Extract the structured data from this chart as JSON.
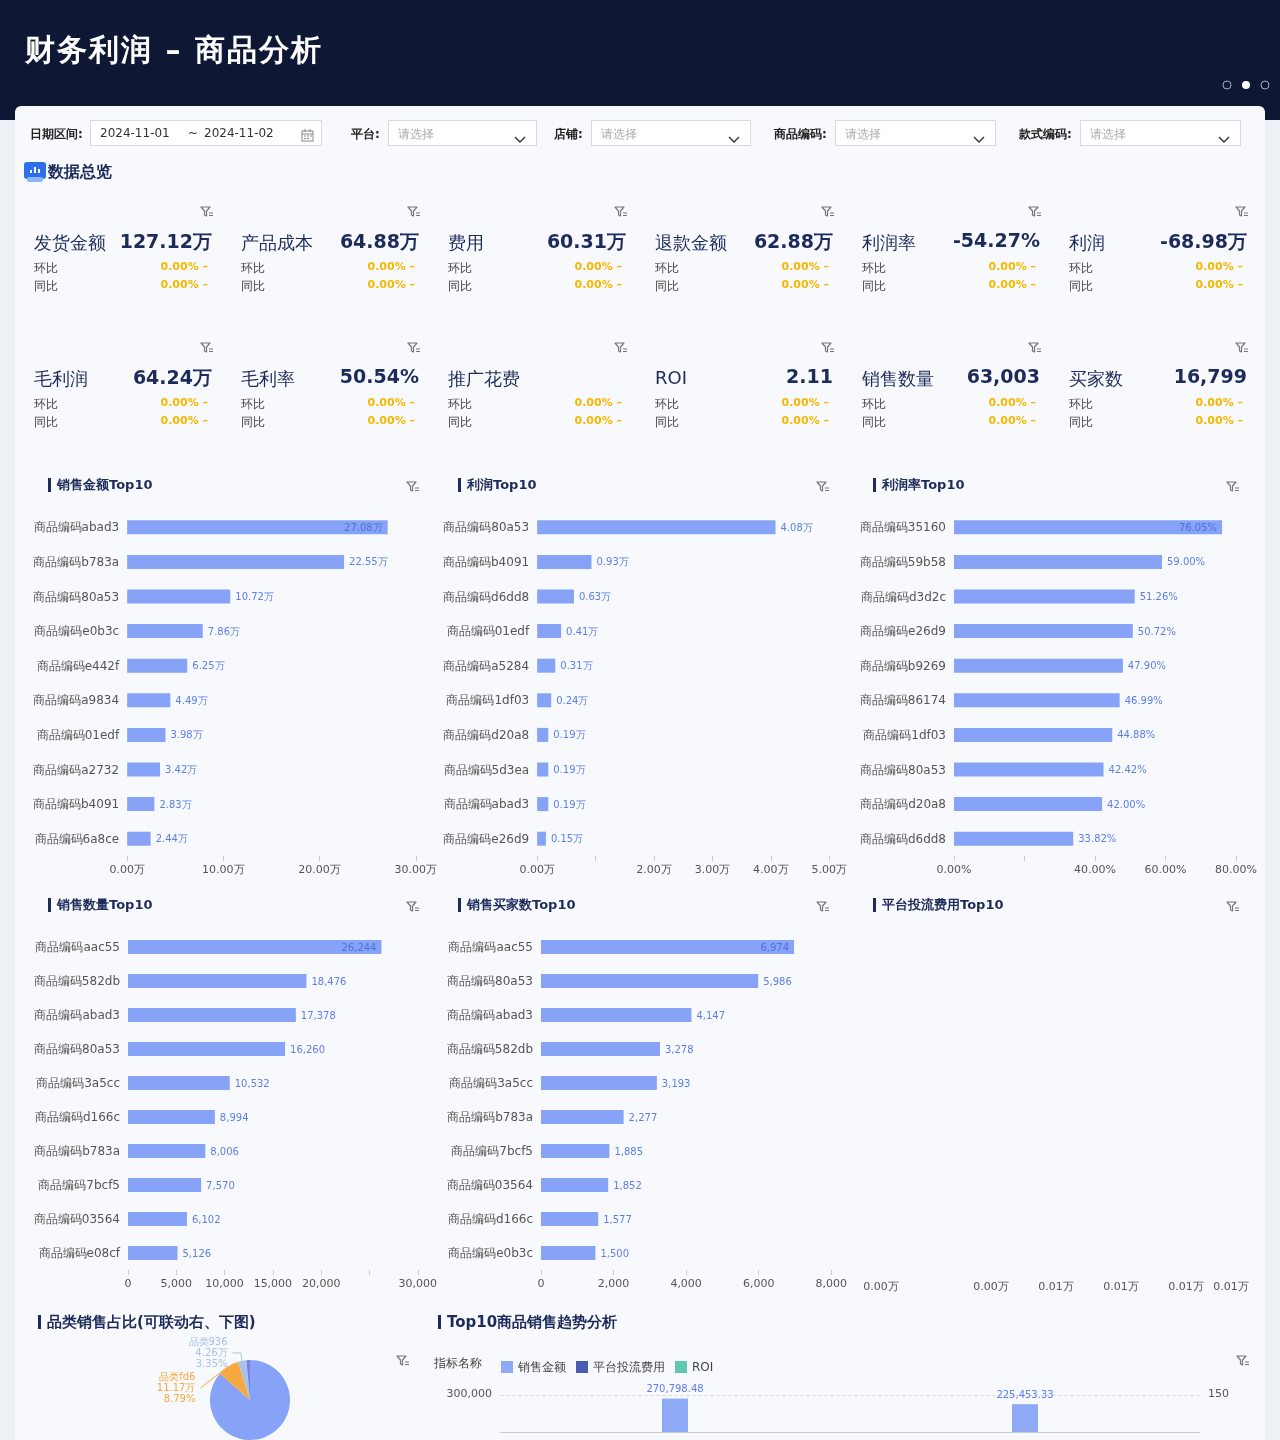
{
  "chart_data": [
    {
      "type": "other",
      "title": "财务利润 – 商品分析",
      "annotations": [
        "日期区间:",
        "2024-11-01",
        "~",
        "2024-11-02",
        "平台:",
        "请选择",
        "店铺:",
        "请选择",
        "商品编码:",
        "请选择",
        "款式编码:",
        "请选择"
      ]
    },
    {
      "type": "other",
      "title": "数据总览",
      "annotations": [
        "发货金额",
        "127.12万",
        "环比",
        "0.00% –",
        "同比",
        "0.00% –",
        "产品成本",
        "64.88万",
        "环比",
        "0.00% –",
        "同比",
        "0.00% –",
        "费用",
        "60.31万",
        "环比",
        "0.00% –",
        "同比",
        "0.00% –",
        "退款金额",
        "62.88万",
        "环比",
        "0.00% –",
        "同比",
        "0.00% –",
        "利润率",
        "-54.27%",
        "环比",
        "0.00% –",
        "同比",
        "0.00% –",
        "利润",
        "-68.98万",
        "环比",
        "0.00% –",
        "同比",
        "0.00% –",
        "毛利润",
        "64.24万",
        "环比",
        "0.00% –",
        "同比",
        "0.00% –",
        "毛利率",
        "50.54%",
        "环比",
        "0.00% –",
        "同比",
        "0.00% –",
        "推广花费",
        "环比",
        "0.00% –",
        "同比",
        "0.00% –",
        "ROI",
        "2.11",
        "环比",
        "0.00% –",
        "同比",
        "0.00% –",
        "销售数量",
        "63,003",
        "环比",
        "0.00% –",
        "同比",
        "0.00% –",
        "买家数",
        "16,799",
        "环比",
        "0.00% –",
        "同比",
        "0.00% –"
      ]
    },
    {
      "type": "bar",
      "orientation": "horizontal",
      "title": "销售金额Top10",
      "categories": [
        "商品编码abad3",
        "商品编码b783a",
        "商品编码80a53",
        "商品编码e0b3c",
        "商品编码e442f",
        "商品编码a9834",
        "商品编码01edf",
        "商品编码a2732",
        "商品编码b4091",
        "商品编码6a8ce"
      ],
      "color": "#86a3f7",
      "values": [
        27.08,
        22.55,
        10.72,
        7.86,
        6.25,
        4.49,
        3.98,
        3.42,
        2.83,
        2.44
      ],
      "value_labels": [
        "27.08万",
        "22.55万",
        "10.72万",
        "7.86万",
        "6.25万",
        "4.49万",
        "3.98万",
        "3.42万",
        "2.83万",
        "2.44万"
      ],
      "xlim": [
        0,
        30
      ],
      "xticks": [
        {
          "value": 0,
          "label": "0.00万"
        },
        {
          "value": 10,
          "label": "10.00万"
        },
        {
          "value": 20,
          "label": "20.00万"
        },
        {
          "value": 30,
          "label": "30.00万"
        }
      ]
    },
    {
      "type": "bar",
      "orientation": "horizontal",
      "title": "利润Top10",
      "categories": [
        "商品编码80a53",
        "商品编码b4091",
        "商品编码d6dd8",
        "商品编码01edf",
        "商品编码a5284",
        "商品编码1df03",
        "商品编码d20a8",
        "商品编码5d3ea",
        "商品编码abad3",
        "商品编码e26d9"
      ],
      "color": "#86a3f7",
      "values": [
        4.08,
        0.93,
        0.63,
        0.41,
        0.31,
        0.24,
        0.19,
        0.19,
        0.19,
        0.15
      ],
      "value_labels": [
        "4.08万",
        "0.93万",
        "0.63万",
        "0.41万",
        "0.31万",
        "0.24万",
        "0.19万",
        "0.19万",
        "0.19万",
        "0.15万"
      ],
      "xlim": [
        0,
        5
      ],
      "xticks": [
        {
          "value": 0,
          "label": "0.00万"
        },
        {
          "value": 1,
          "label": null
        },
        {
          "value": 2,
          "label": "2.00万"
        },
        {
          "value": 3,
          "label": "3.00万"
        },
        {
          "value": 4,
          "label": "4.00万"
        },
        {
          "value": 5,
          "label": "5.00万"
        }
      ]
    },
    {
      "type": "bar",
      "orientation": "horizontal",
      "title": "利润率Top10",
      "categories": [
        "商品编码35160",
        "商品编码59b58",
        "商品编码d3d2c",
        "商品编码e26d9",
        "商品编码b9269",
        "商品编码86174",
        "商品编码1df03",
        "商品编码80a53",
        "商品编码d20a8",
        "商品编码d6dd8"
      ],
      "color": "#86a3f7",
      "values": [
        76.05,
        59.0,
        51.26,
        50.72,
        47.9,
        46.99,
        44.88,
        42.42,
        42.0,
        33.82
      ],
      "value_labels": [
        "76.05%",
        "59.00%",
        "51.26%",
        "50.72%",
        "47.90%",
        "46.99%",
        "44.88%",
        "42.42%",
        "42.00%",
        "33.82%"
      ],
      "xlim": [
        0,
        80
      ],
      "xticks": [
        {
          "value": 0,
          "label": "0.00%"
        },
        {
          "value": 20,
          "label": null
        },
        {
          "value": 40,
          "label": "40.00%"
        },
        {
          "value": 60,
          "label": "60.00%"
        },
        {
          "value": 80,
          "label": "80.00%"
        }
      ]
    },
    {
      "type": "bar",
      "orientation": "horizontal",
      "title": "销售数量Top10",
      "categories": [
        "商品编码aac55",
        "商品编码582db",
        "商品编码abad3",
        "商品编码80a53",
        "商品编码3a5cc",
        "商品编码d166c",
        "商品编码b783a",
        "商品编码7bcf5",
        "商品编码03564",
        "商品编码e08cf"
      ],
      "color": "#86a3f7",
      "values": [
        26244,
        18476,
        17378,
        16260,
        10532,
        8994,
        8006,
        7570,
        6102,
        5126
      ],
      "value_labels": [
        "26,244",
        "18,476",
        "17,378",
        "16,260",
        "10,532",
        "8,994",
        "8,006",
        "7,570",
        "6,102",
        "5,126"
      ],
      "xlim": [
        0,
        30000
      ],
      "xticks": [
        0,
        {
          "value": 5000,
          "label": "5,000"
        },
        {
          "value": 10000,
          "label": "10,000"
        },
        {
          "value": 15000,
          "label": "15,000"
        },
        {
          "value": 20000,
          "label": "20,000"
        },
        {
          "value": 25000,
          "label": null
        },
        {
          "value": 30000,
          "label": "30,000"
        }
      ]
    },
    {
      "type": "bar",
      "orientation": "horizontal",
      "title": "销售买家数Top10",
      "categories": [
        "商品编码aac55",
        "商品编码80a53",
        "商品编码abad3",
        "商品编码582db",
        "商品编码3a5cc",
        "商品编码b783a",
        "商品编码7bcf5",
        "商品编码03564",
        "商品编码d166c",
        "商品编码e0b3c"
      ],
      "color": "#86a3f7",
      "values": [
        6974,
        5986,
        4147,
        3278,
        3193,
        2277,
        1885,
        1852,
        1577,
        1500
      ],
      "value_labels": [
        "6,974",
        "5,986",
        "4,147",
        "3,278",
        "3,193",
        "2,277",
        "1,885",
        "1,852",
        "1,577",
        "1,500"
      ],
      "xlim": [
        0,
        8000
      ],
      "xticks": [
        0,
        {
          "value": 2000,
          "label": "2,000"
        },
        {
          "value": 4000,
          "label": "4,000"
        },
        {
          "value": 6000,
          "label": "6,000"
        },
        {
          "value": 8000,
          "label": "8,000"
        }
      ]
    },
    {
      "type": "other",
      "title": "平台投流费用Top10",
      "annotations": [
        "0.00万",
        "0.00万",
        "0.01万",
        "0.01万",
        "0.01万",
        "0.01万"
      ]
    },
    {
      "type": "pie",
      "title": "品类销售占比(可联动右、下图)",
      "categories": [
        null,
        "品类fd6",
        "品类936",
        null
      ],
      "values": [
        86.4,
        8.79,
        3.35,
        1.46
      ],
      "colors": [
        "#86a3f7",
        "#f5a940",
        "#a6c4e8",
        "#7d80e2"
      ],
      "value_labels": [
        null,
        "11.17万\n8.79%",
        "4.26万\n3.35%",
        null
      ]
    },
    {
      "type": "bar",
      "title": "Top10商品销售趋势分析",
      "legend_title": "指标名称",
      "legend": "top left",
      "grid": "y",
      "stacked": true,
      "categories": [
        null,
        null
      ],
      "series": [
        {
          "name": "销售金额",
          "color": "#8eaaf7",
          "values": [
            270798.48,
            225453.33
          ],
          "value_labels": [
            "270,798.48",
            "225,453.33"
          ]
        },
        {
          "name": "平台投流费用",
          "color": "#4a5cb3",
          "values": [
            null,
            null
          ]
        },
        {
          "name": "ROI",
          "color": "#5ec8b3",
          "values": [
            null,
            null
          ]
        }
      ],
      "ylim": [
        0,
        300000
      ],
      "annotations": [
        "300,000",
        "150"
      ]
    }
  ]
}
